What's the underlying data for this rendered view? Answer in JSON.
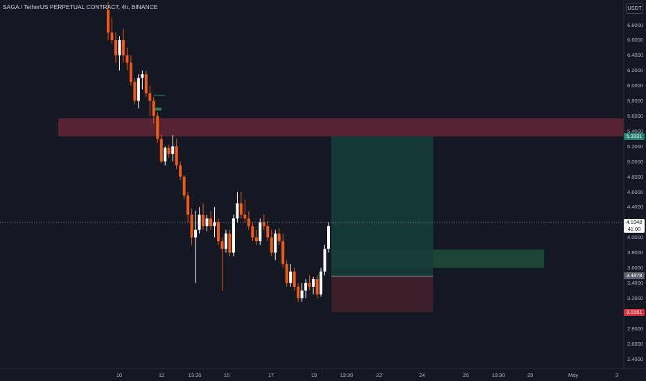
{
  "header": {
    "title": "SAGA / TetherUS PERPETUAL CONTRACT, 4h, BINANCE",
    "currency_button": "USDT"
  },
  "chart_data": {
    "type": "candlestick",
    "symbol": "SAGA / TetherUS PERPETUAL CONTRACT",
    "timeframe": "4h",
    "exchange": "BINANCE",
    "y_ticks": [
      "6.8000",
      "6.6000",
      "6.4000",
      "6.2000",
      "6.0000",
      "5.8000",
      "5.6000",
      "5.4000",
      "5.2000",
      "5.0000",
      "4.8000",
      "4.6000",
      "4.4000",
      "4.2000",
      "4.0000",
      "3.8000",
      "3.6000",
      "3.4000",
      "3.2000",
      "3.0000",
      "2.8000",
      "2.6000",
      "2.4000"
    ],
    "y_tick_values": [
      6.8,
      6.6,
      6.4,
      6.2,
      6.0,
      5.8,
      5.6,
      5.4,
      5.2,
      5.0,
      4.8,
      4.6,
      4.4,
      4.2,
      4.0,
      3.8,
      3.6,
      3.4,
      3.2,
      3.0,
      2.8,
      2.6,
      2.4
    ],
    "x_ticks": [
      "10",
      "12",
      "13:30",
      "15",
      "17",
      "19",
      "13:30",
      "22",
      "24",
      "26",
      "13:30",
      "29",
      "May",
      "3"
    ],
    "current_price": {
      "label": "4.1948",
      "value": 4.1948,
      "countdown": "41:00"
    },
    "target_price": {
      "label": "5.3331",
      "value": 5.3331
    },
    "entry_price": {
      "label": "3.4878",
      "value": 3.4878
    },
    "stop_price": {
      "label": "3.0161",
      "value": 3.0161
    },
    "zones": [
      {
        "name": "resistance-zone",
        "from": 5.33,
        "to": 5.57,
        "color": "#5c2533"
      },
      {
        "name": "support-zone",
        "from": 3.6,
        "to": 3.84,
        "color": "#1f4d3a"
      },
      {
        "name": "profit-zone",
        "from": 3.4878,
        "to": 5.3331,
        "color": "#163c38"
      },
      {
        "name": "loss-zone",
        "from": 3.0161,
        "to": 3.4878,
        "color": "#3e1f2b"
      }
    ],
    "candles": [
      [
        7.0,
        7.1,
        6.6,
        6.7
      ],
      [
        6.7,
        6.9,
        6.55,
        6.6
      ],
      [
        6.6,
        6.7,
        6.3,
        6.4
      ],
      [
        6.4,
        6.65,
        6.2,
        6.6
      ],
      [
        6.6,
        6.75,
        6.3,
        6.4
      ],
      [
        6.4,
        6.5,
        6.2,
        6.3
      ],
      [
        6.3,
        6.4,
        6.0,
        6.05
      ],
      [
        6.05,
        6.1,
        5.75,
        5.8
      ],
      [
        5.8,
        6.15,
        5.7,
        6.1
      ],
      [
        6.1,
        6.2,
        5.95,
        6.15
      ],
      [
        6.15,
        6.2,
        5.85,
        5.9
      ],
      [
        5.9,
        6.0,
        5.6,
        5.8
      ],
      [
        5.8,
        5.85,
        5.5,
        5.6
      ],
      [
        5.6,
        5.65,
        5.25,
        5.3
      ],
      [
        5.3,
        5.35,
        4.98,
        5.0
      ],
      [
        5.0,
        5.2,
        4.95,
        5.18
      ],
      [
        5.18,
        5.22,
        5.05,
        5.1
      ],
      [
        5.1,
        5.35,
        5.0,
        5.2
      ],
      [
        5.2,
        5.3,
        4.9,
        4.95
      ],
      [
        4.95,
        5.0,
        4.75,
        4.8
      ],
      [
        4.8,
        4.82,
        4.5,
        4.55
      ],
      [
        4.55,
        4.6,
        4.2,
        4.3
      ],
      [
        4.3,
        4.38,
        3.9,
        4.0
      ],
      [
        4.0,
        4.35,
        3.4,
        4.1
      ],
      [
        4.1,
        4.4,
        4.05,
        4.3
      ],
      [
        4.3,
        4.45,
        4.1,
        4.15
      ],
      [
        4.15,
        4.3,
        4.08,
        4.25
      ],
      [
        4.25,
        4.35,
        4.1,
        4.15
      ],
      [
        4.15,
        4.4,
        4.0,
        4.2
      ],
      [
        4.2,
        4.25,
        3.9,
        3.95
      ],
      [
        3.95,
        4.0,
        3.3,
        3.85
      ],
      [
        3.85,
        4.1,
        3.8,
        4.05
      ],
      [
        4.05,
        4.1,
        3.75,
        3.8
      ],
      [
        3.8,
        4.3,
        3.75,
        4.25
      ],
      [
        4.25,
        4.6,
        4.2,
        4.45
      ],
      [
        4.45,
        4.6,
        4.25,
        4.3
      ],
      [
        4.3,
        4.5,
        4.2,
        4.25
      ],
      [
        4.25,
        4.35,
        4.1,
        4.15
      ],
      [
        4.15,
        4.2,
        3.95,
        4.0
      ],
      [
        4.0,
        4.1,
        3.9,
        3.95
      ],
      [
        3.95,
        4.25,
        3.9,
        4.2
      ],
      [
        4.2,
        4.3,
        4.1,
        4.15
      ],
      [
        4.15,
        4.22,
        3.95,
        4.0
      ],
      [
        4.0,
        4.1,
        3.75,
        3.8
      ],
      [
        3.8,
        4.1,
        3.7,
        4.05
      ],
      [
        4.05,
        4.12,
        3.9,
        3.95
      ],
      [
        3.95,
        4.05,
        3.6,
        3.65
      ],
      [
        3.65,
        3.7,
        3.35,
        3.4
      ],
      [
        3.4,
        3.65,
        3.35,
        3.55
      ],
      [
        3.55,
        3.6,
        3.3,
        3.35
      ],
      [
        3.35,
        3.4,
        3.15,
        3.2
      ],
      [
        3.2,
        3.4,
        3.15,
        3.3
      ],
      [
        3.3,
        3.45,
        3.2,
        3.4
      ],
      [
        3.4,
        3.5,
        3.3,
        3.35
      ],
      [
        3.35,
        3.48,
        3.25,
        3.45
      ],
      [
        3.45,
        3.5,
        3.2,
        3.25
      ],
      [
        3.25,
        3.6,
        3.22,
        3.55
      ],
      [
        3.55,
        3.9,
        3.5,
        3.85
      ],
      [
        3.85,
        4.2,
        3.8,
        4.15
      ]
    ]
  },
  "colors": {
    "background": "#141823",
    "up_candle": "#ffffff",
    "down_candle": "#f05a14",
    "current_line": "#8a8e99",
    "target_tag": "#26806e",
    "entry_tag": "#5d606b",
    "stop_tag": "#d9313f",
    "current_tag": "#ffffff"
  }
}
